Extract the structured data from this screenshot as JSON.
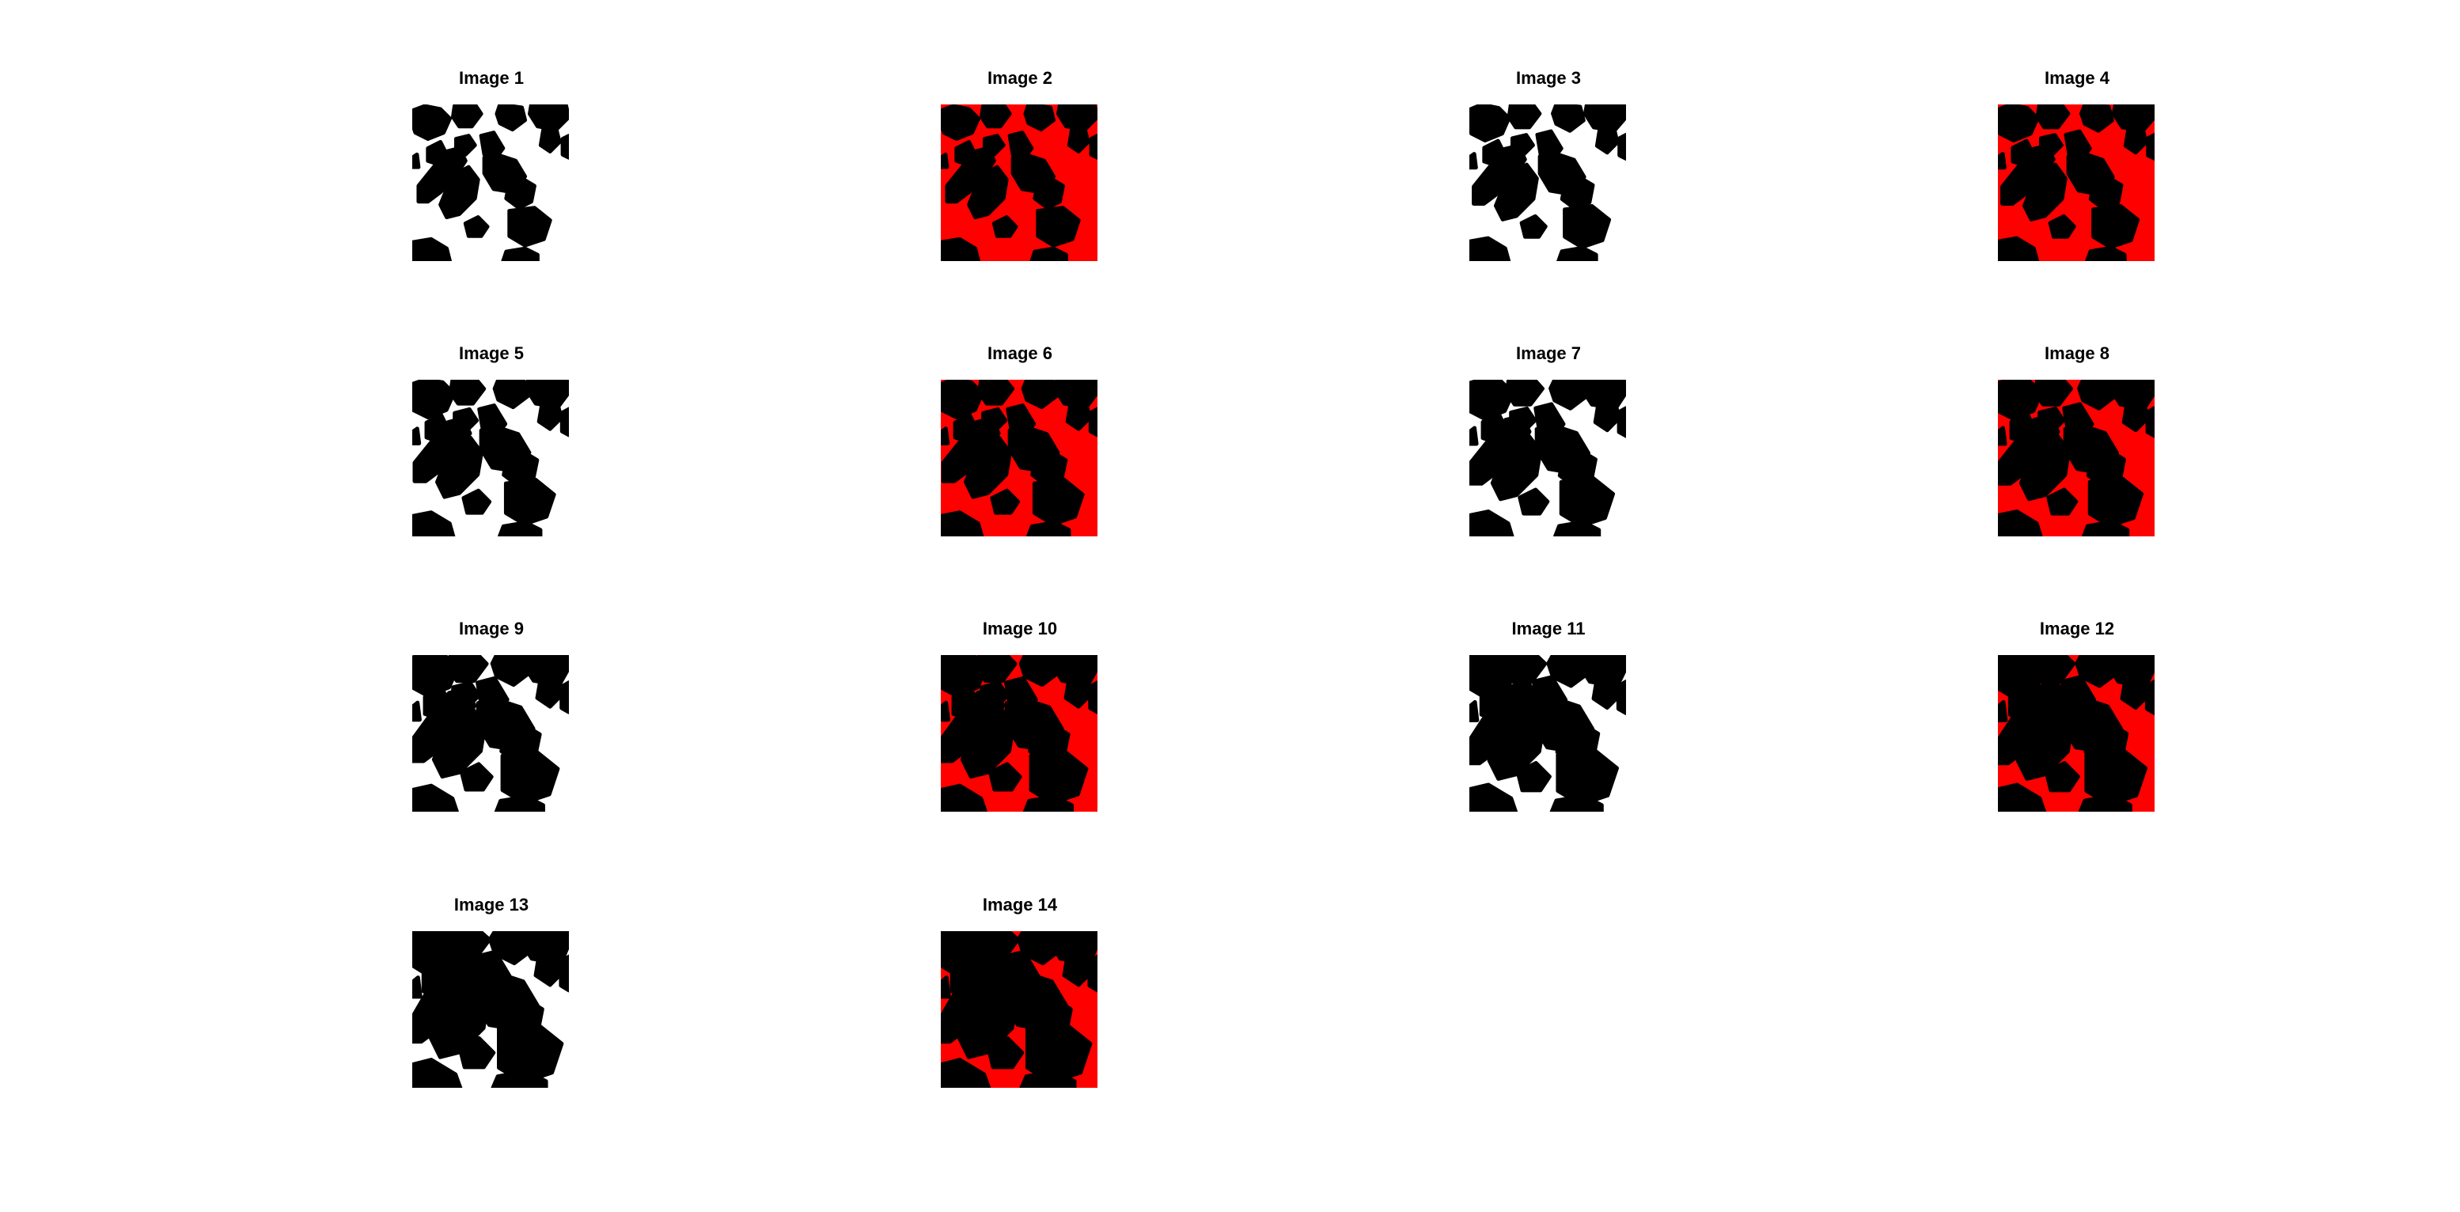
{
  "figure": {
    "panels": [
      {
        "title": "Image 1",
        "background": "#ffffff"
      },
      {
        "title": "Image 2",
        "background": "#ff0000"
      },
      {
        "title": "Image 3",
        "background": "#ffffff"
      },
      {
        "title": "Image 4",
        "background": "#ff0000"
      },
      {
        "title": "Image 5",
        "background": "#ffffff"
      },
      {
        "title": "Image 6",
        "background": "#ff0000"
      },
      {
        "title": "Image 7",
        "background": "#ffffff"
      },
      {
        "title": "Image 8",
        "background": "#ff0000"
      },
      {
        "title": "Image 9",
        "background": "#ffffff"
      },
      {
        "title": "Image 10",
        "background": "#ff0000"
      },
      {
        "title": "Image 11",
        "background": "#ffffff"
      },
      {
        "title": "Image 12",
        "background": "#ff0000"
      },
      {
        "title": "Image 13",
        "background": "#ffffff"
      },
      {
        "title": "Image 14",
        "background": "#ff0000"
      }
    ],
    "foreground_color": "#000000"
  }
}
